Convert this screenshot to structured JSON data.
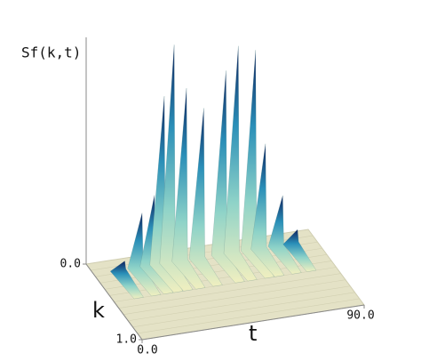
{
  "chart_data": {
    "type": "surface",
    "z_label": "Sf(k,t)",
    "k_label": "k",
    "x_label": "t",
    "x": [
      10,
      17,
      22,
      26,
      30,
      35,
      42,
      51,
      56,
      63,
      67,
      74,
      80
    ],
    "series": [
      {
        "values": [
          0.08,
          0.28,
          0.35,
          0.78,
          1.0,
          0.8,
          0.7,
          0.85,
          0.95,
          0.92,
          0.5,
          0.26,
          0.1
        ]
      }
    ],
    "xlim": [
      0,
      90
    ],
    "xticks": [
      {
        "value": 0,
        "label": "0.0"
      },
      {
        "value": 90,
        "label": "90.0"
      }
    ],
    "klim": [
      0,
      1
    ],
    "kticks": [
      {
        "value": 1,
        "label": "1.0"
      }
    ],
    "zlim": [
      0,
      1
    ],
    "zticks": [
      {
        "value": 0,
        "label": "0.0"
      }
    ],
    "ridge_k": 0.25,
    "colors": [
      "#0d1f5c",
      "#2a8fb8",
      "#8fd3c8",
      "#f0efc0"
    ],
    "plane_color": "#e4e2c6"
  }
}
